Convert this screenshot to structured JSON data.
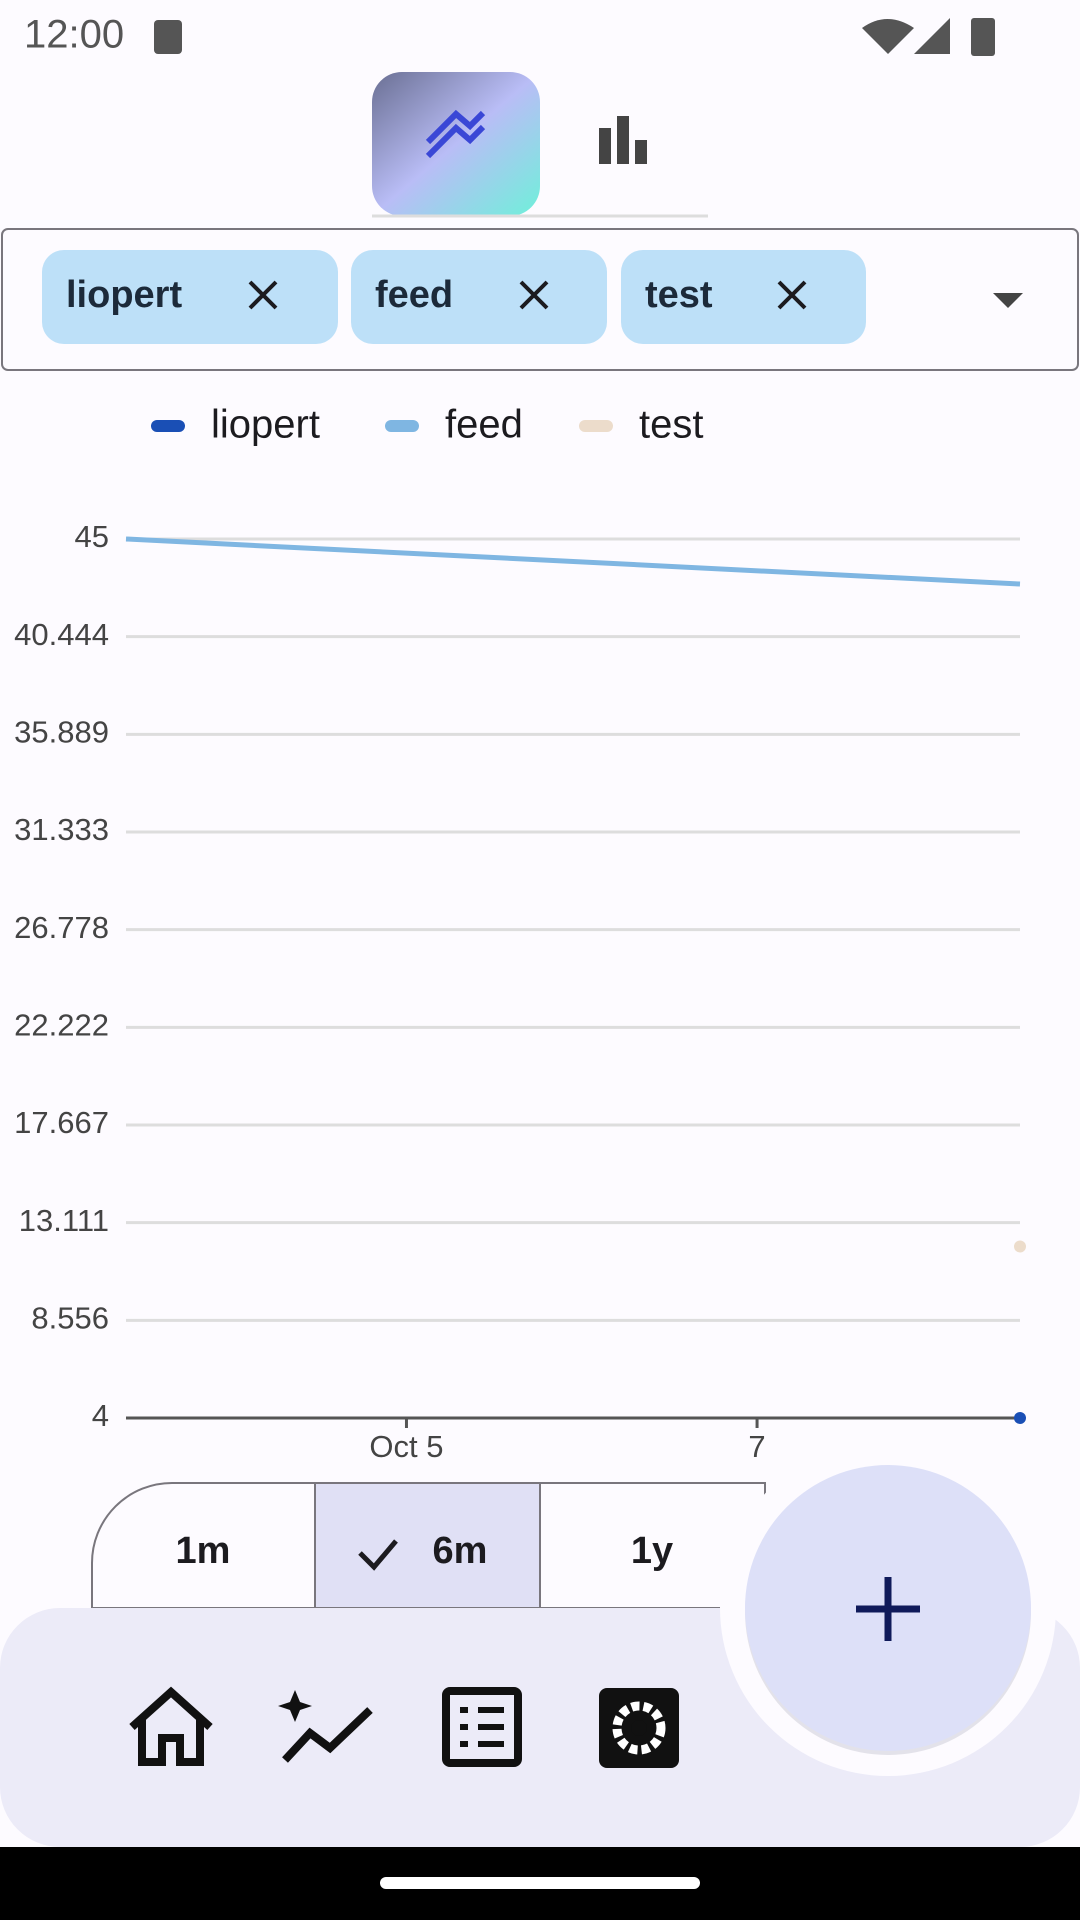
{
  "status_bar": {
    "time": "12:00"
  },
  "chips": [
    {
      "label": "liopert"
    },
    {
      "label": "feed"
    },
    {
      "label": "test"
    }
  ],
  "chart_data": {
    "type": "line",
    "x": [
      3.4,
      8.5
    ],
    "xlim": [
      3.4,
      8.5
    ],
    "xticks": [
      {
        "value": 5,
        "label": "Oct 5"
      },
      {
        "value": 7,
        "label": "7"
      }
    ],
    "ylim": [
      4,
      45
    ],
    "yticks": [
      45,
      40.444,
      35.889,
      31.333,
      26.778,
      22.222,
      17.667,
      13.111,
      8.556,
      4
    ],
    "grid": true,
    "series": [
      {
        "name": "liopert",
        "color": "#1a4fb5",
        "values": [
          null,
          4
        ]
      },
      {
        "name": "feed",
        "color": "#7fb6e2",
        "values": [
          45,
          42.9
        ]
      },
      {
        "name": "test",
        "color": "#ecdccb",
        "values": [
          null,
          12
        ]
      }
    ]
  },
  "range_buttons": [
    "1m",
    "6m",
    "1y"
  ]
}
